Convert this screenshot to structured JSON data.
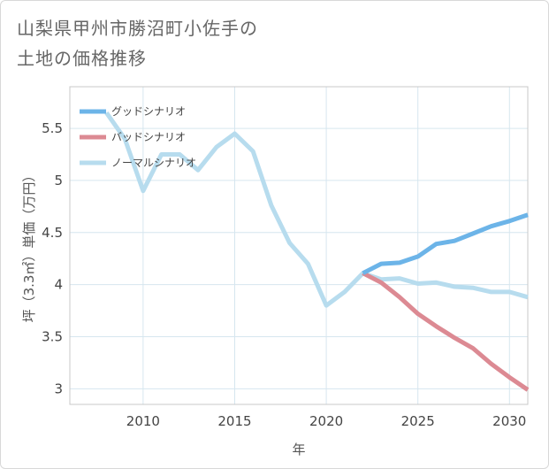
{
  "title": {
    "line1": "山梨県甲州市勝沼町小佐手の",
    "line2": "土地の価格推移"
  },
  "chart_data": {
    "type": "line",
    "xlabel": "年",
    "ylabel": "坪（3.3㎡）単価（万円）",
    "xlim": [
      2006,
      2031
    ],
    "ylim": [
      2.85,
      5.9
    ],
    "x_ticks": [
      2010,
      2015,
      2020,
      2025,
      2030
    ],
    "y_ticks": [
      3,
      3.5,
      4,
      4.5,
      5,
      5.5
    ],
    "x_tick_labels": [
      "2010",
      "2015",
      "2020",
      "2025",
      "2030"
    ],
    "y_tick_labels": [
      "3",
      "3.5",
      "4",
      "4.5",
      "5",
      "5.5"
    ],
    "legend_position": "top-left",
    "series": [
      {
        "name": "グッドシナリオ",
        "color": "#6cb4e8",
        "x": [
          2022,
          2023,
          2024,
          2025,
          2026,
          2027,
          2028,
          2029,
          2030,
          2031
        ],
        "values": [
          4.11,
          4.2,
          4.21,
          4.27,
          4.39,
          4.42,
          4.49,
          4.56,
          4.61,
          4.67
        ]
      },
      {
        "name": "バッドシナリオ",
        "color": "#dc8a93",
        "x": [
          2022,
          2023,
          2024,
          2025,
          2026,
          2027,
          2028,
          2029,
          2030,
          2031
        ],
        "values": [
          4.11,
          4.02,
          3.88,
          3.72,
          3.6,
          3.49,
          3.39,
          3.24,
          3.11,
          2.99
        ]
      },
      {
        "name": "ノーマルシナリオ",
        "color": "#b7dcee",
        "x": [
          2008,
          2009,
          2010,
          2011,
          2012,
          2013,
          2014,
          2015,
          2016,
          2017,
          2018,
          2019,
          2020,
          2021,
          2022,
          2023,
          2024,
          2025,
          2026,
          2027,
          2028,
          2029,
          2030,
          2031
        ],
        "values": [
          5.65,
          5.4,
          4.9,
          5.25,
          5.25,
          5.1,
          5.32,
          5.45,
          5.28,
          4.76,
          4.4,
          4.2,
          3.8,
          3.93,
          4.11,
          4.05,
          4.06,
          4.01,
          4.02,
          3.98,
          3.97,
          3.93,
          3.93,
          3.88
        ]
      }
    ]
  }
}
